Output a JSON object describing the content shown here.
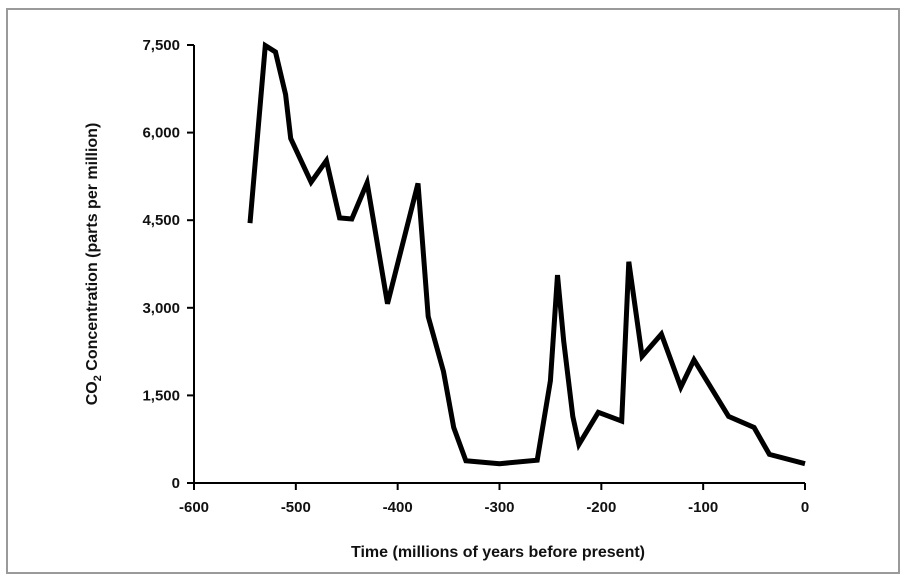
{
  "chart_data": {
    "type": "line",
    "xlabel": "Time (millions of years before present)",
    "ylabel": {
      "prefix": "CO",
      "subscript": "2",
      "suffix": " Concentration (parts per million)"
    },
    "xlim": [
      -600,
      0
    ],
    "ylim": [
      0,
      7500
    ],
    "x_ticks": [
      -600,
      -500,
      -400,
      -300,
      -200,
      -100,
      0
    ],
    "x_tick_labels": [
      "-600",
      "-500",
      "-400",
      "-300",
      "-200",
      "-100",
      "0"
    ],
    "y_ticks": [
      0,
      1500,
      3000,
      4500,
      6000,
      7500
    ],
    "y_tick_labels": [
      "0",
      "1,500",
      "3,000",
      "4,500",
      "6,000",
      "7,500"
    ],
    "grid": false,
    "line_color": "#000000",
    "series": [
      {
        "x": [
          -545,
          -530,
          -520,
          -510,
          -505,
          -485,
          -470,
          -457,
          -445,
          -430,
          -410,
          -380,
          -370,
          -355,
          -345,
          -333,
          -300,
          -263,
          -250,
          -243,
          -237,
          -228,
          -222,
          -203,
          -180,
          -173,
          -160,
          -141,
          -122,
          -109,
          -75,
          -50,
          -35,
          0
        ],
        "y": [
          4450,
          7490,
          7380,
          6650,
          5900,
          5150,
          5520,
          4540,
          4520,
          5140,
          3070,
          5130,
          2850,
          1910,
          950,
          380,
          330,
          390,
          1750,
          3560,
          2430,
          1140,
          660,
          1210,
          1060,
          3790,
          2170,
          2550,
          1640,
          2110,
          1140,
          950,
          490,
          330
        ]
      }
    ]
  }
}
